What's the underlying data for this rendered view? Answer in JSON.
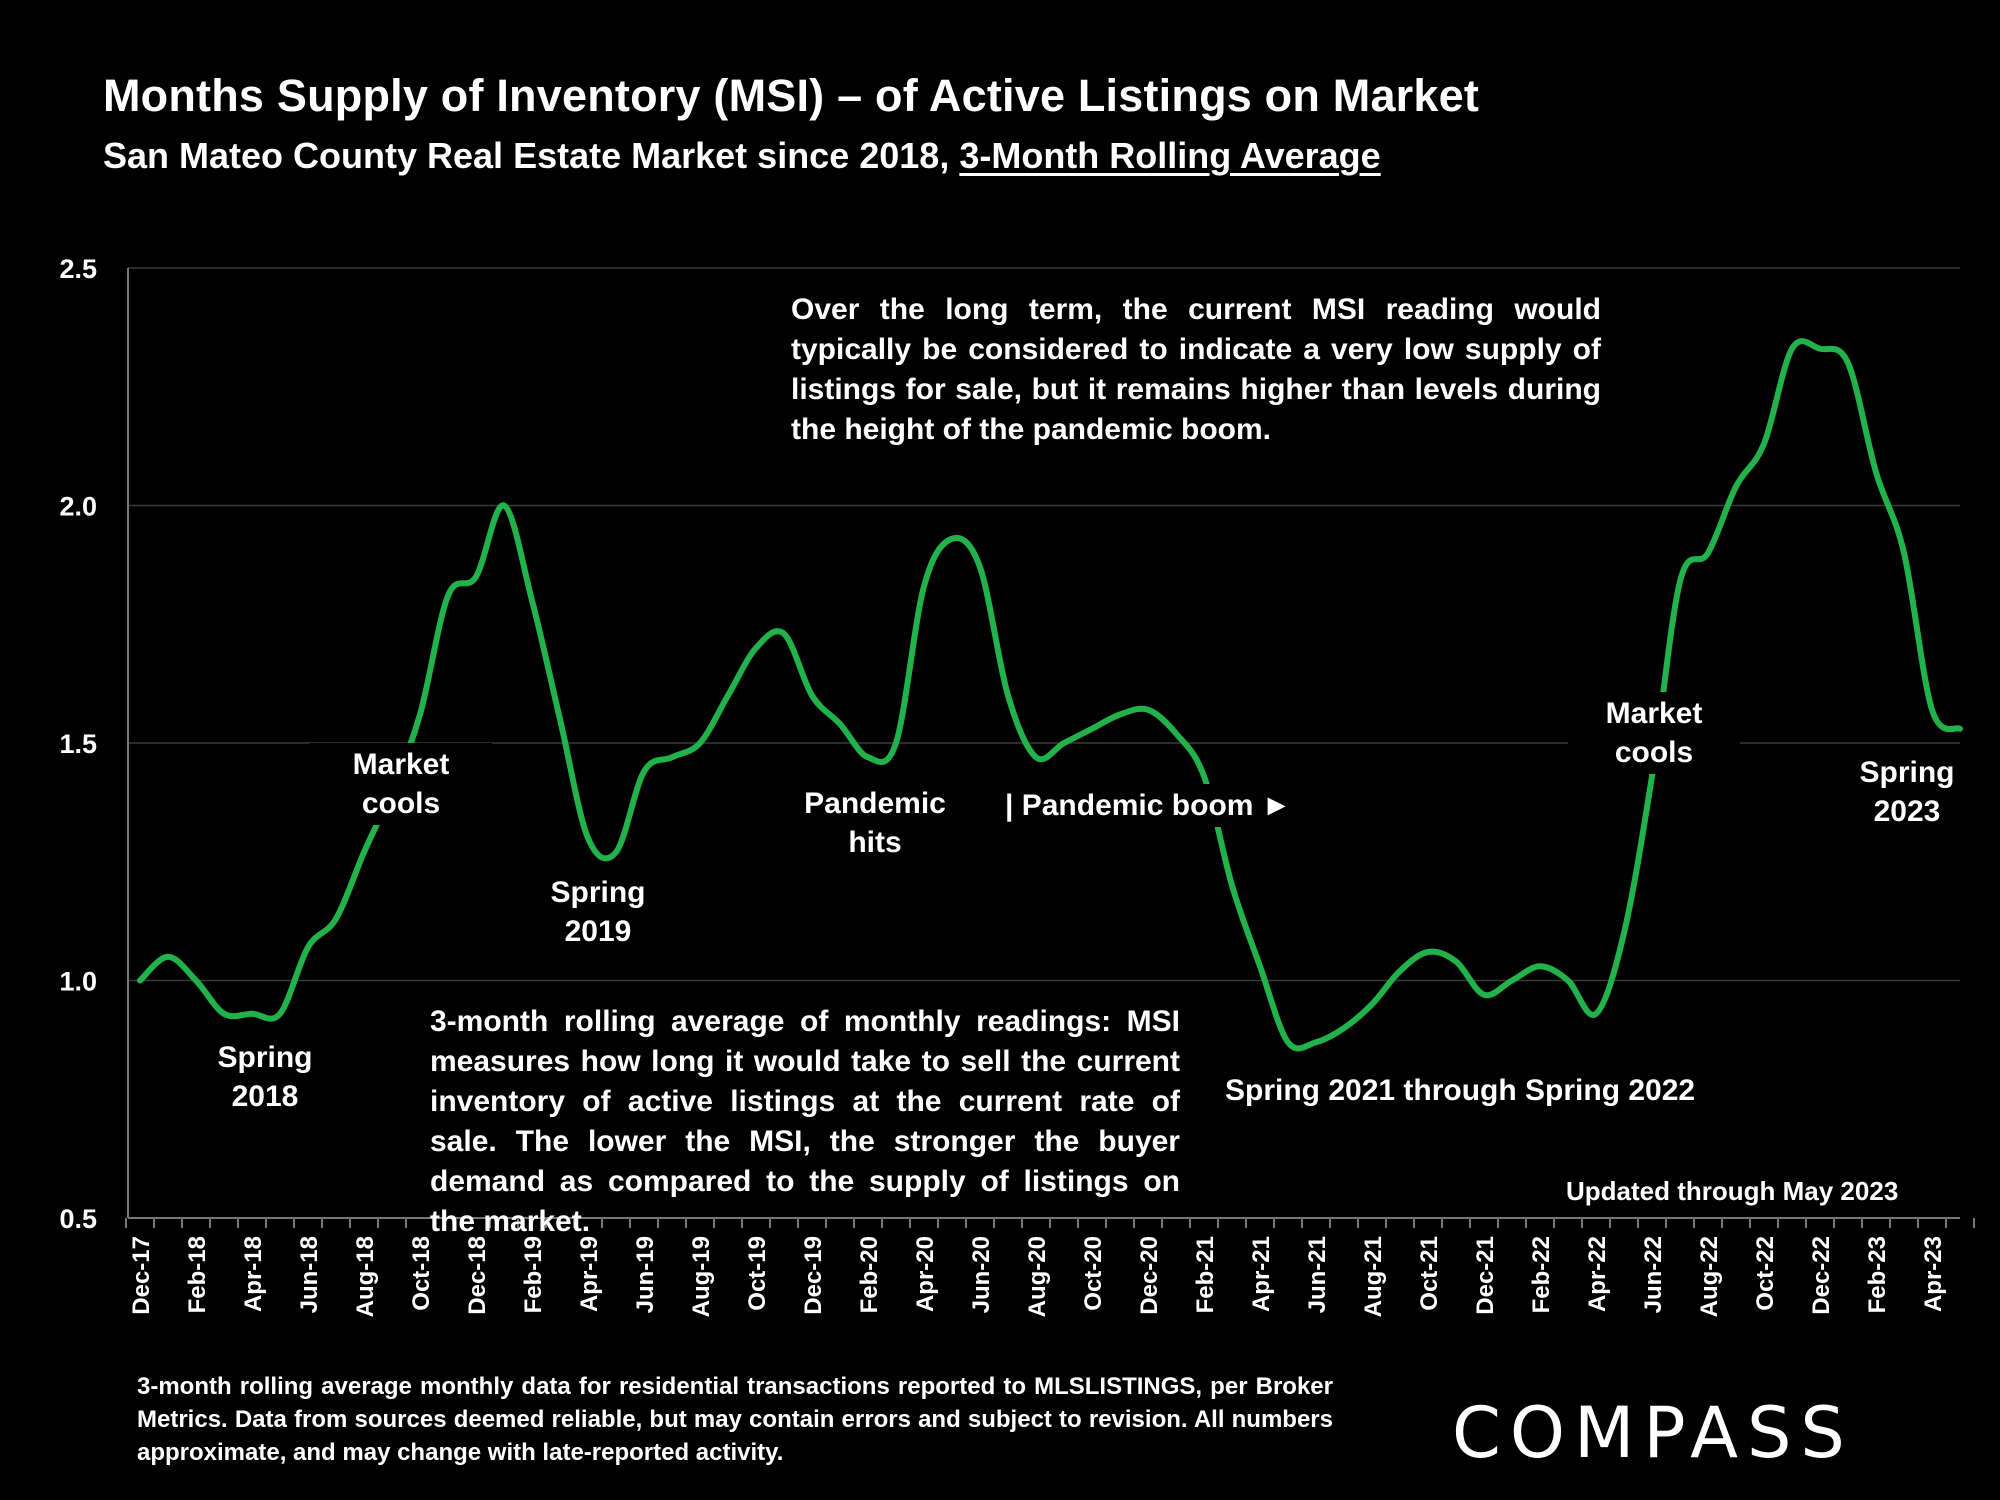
{
  "header": {
    "title": "Months Supply of Inventory (MSI) – of Active Listings on Market",
    "subtitle_prefix": "San Mateo County Real Estate Market since 2018, ",
    "subtitle_underlined": "3-Month Rolling Average"
  },
  "annotations": {
    "top_note": "Over the long term, the current MSI reading would typically be considered to indicate a very low supply of listings for sale, but it remains higher than levels during the height of the pandemic boom.",
    "bottom_note": "3-month rolling average of monthly readings: MSI measures how long it would take to sell the current inventory of active listings at the current rate of sale. The lower the MSI, the stronger the buyer demand as compared to the supply of listings on the market.",
    "spring_2018": "Spring 2018",
    "market_cools_1": "Market cools",
    "spring_2019": "Spring 2019",
    "pandemic_hits": "Pandemic hits",
    "pandemic_boom": "| Pandemic boom ►",
    "spring_2021_2022": "Spring 2021 through Spring 2022",
    "market_cools_2": "Market cools",
    "spring_2023": "Spring 2023",
    "updated": "Updated through May 2023"
  },
  "footnote": "3-month rolling average monthly data for residential transactions reported to MLSLISTINGS, per Broker Metrics. Data from sources deemed reliable, but may contain errors and subject to revision. All numbers approximate, and may change with late-reported activity.",
  "logo": "COMPASS",
  "colors": {
    "line": "#22b24c",
    "background": "#000000",
    "text": "#ffffff",
    "grid": "#3a3a3a"
  },
  "chart_data": {
    "type": "line",
    "title": "Months Supply of Inventory (MSI) – of Active Listings on Market",
    "xlabel": "",
    "ylabel": "",
    "ylim": [
      0.5,
      2.5
    ],
    "yticks": [
      "0.5",
      "1.0",
      "1.5",
      "2.0",
      "2.5"
    ],
    "grid": true,
    "categories": [
      "Dec-17",
      "Jan-18",
      "Feb-18",
      "Mar-18",
      "Apr-18",
      "May-18",
      "Jun-18",
      "Jul-18",
      "Aug-18",
      "Sep-18",
      "Oct-18",
      "Nov-18",
      "Dec-18",
      "Jan-19",
      "Feb-19",
      "Mar-19",
      "Apr-19",
      "May-19",
      "Jun-19",
      "Jul-19",
      "Aug-19",
      "Sep-19",
      "Oct-19",
      "Nov-19",
      "Dec-19",
      "Jan-20",
      "Feb-20",
      "Mar-20",
      "Apr-20",
      "May-20",
      "Jun-20",
      "Jul-20",
      "Aug-20",
      "Sep-20",
      "Oct-20",
      "Nov-20",
      "Dec-20",
      "Jan-21",
      "Feb-21",
      "Mar-21",
      "Apr-21",
      "May-21",
      "Jun-21",
      "Jul-21",
      "Aug-21",
      "Sep-21",
      "Oct-21",
      "Nov-21",
      "Dec-21",
      "Jan-22",
      "Feb-22",
      "Mar-22",
      "Apr-22",
      "May-22",
      "Jun-22",
      "Jul-22",
      "Aug-22",
      "Sep-22",
      "Oct-22",
      "Nov-22",
      "Dec-22",
      "Jan-23",
      "Feb-23",
      "Mar-23",
      "Apr-23",
      "May-23"
    ],
    "tick_labels": [
      "Dec-17",
      "Feb-18",
      "Apr-18",
      "Jun-18",
      "Aug-18",
      "Oct-18",
      "Dec-18",
      "Feb-19",
      "Apr-19",
      "Jun-19",
      "Aug-19",
      "Oct-19",
      "Dec-19",
      "Feb-20",
      "Apr-20",
      "Jun-20",
      "Aug-20",
      "Oct-20",
      "Dec-20",
      "Feb-21",
      "Apr-21",
      "Jun-21",
      "Aug-21",
      "Oct-21",
      "Dec-21",
      "Feb-22",
      "Apr-22",
      "Jun-22",
      "Aug-22",
      "Oct-22",
      "Dec-22",
      "Feb-23",
      "Apr-23"
    ],
    "series": [
      {
        "values": [
          1.0,
          1.05,
          1.0,
          0.93,
          0.93,
          0.93,
          1.07,
          1.13,
          1.27,
          1.4,
          1.56,
          1.81,
          1.85,
          2.0,
          1.8,
          1.55,
          1.3,
          1.27,
          1.44,
          1.47,
          1.5,
          1.6,
          1.7,
          1.73,
          1.6,
          1.54,
          1.47,
          1.5,
          1.83,
          1.93,
          1.87,
          1.6,
          1.47,
          1.5,
          1.53,
          1.56,
          1.57,
          1.52,
          1.43,
          1.2,
          1.03,
          0.87,
          0.87,
          0.9,
          0.95,
          1.02,
          1.06,
          1.04,
          0.97,
          1.0,
          1.03,
          1.0,
          0.93,
          1.1,
          1.43,
          1.84,
          1.9,
          2.04,
          2.13,
          2.33,
          2.33,
          2.3,
          2.07,
          1.9,
          1.57,
          1.53
        ]
      }
    ]
  }
}
